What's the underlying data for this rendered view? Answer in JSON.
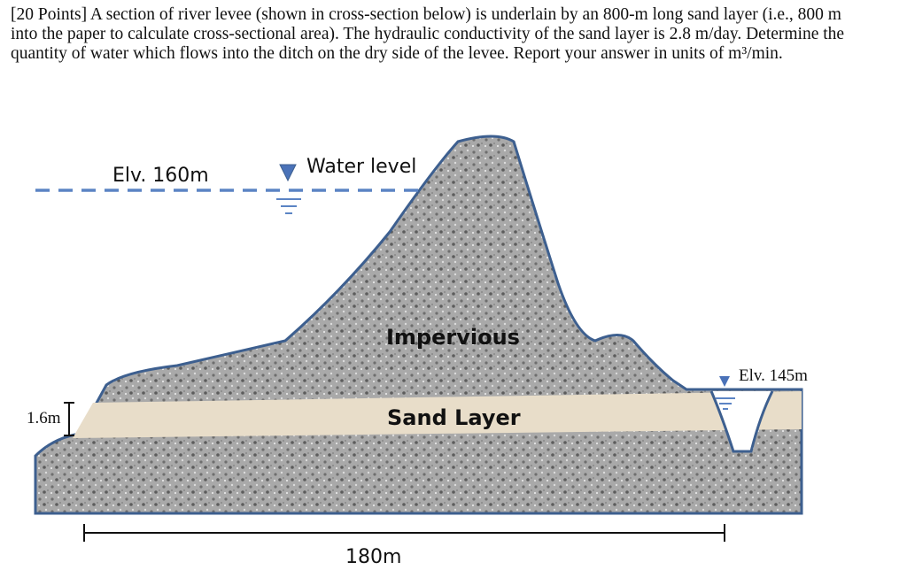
{
  "question": {
    "text": "[20 Points] A section of river levee (shown in cross-section below) is underlain by an 800-m long sand layer (i.e., 800 m into the paper to calculate cross-sectional area). The hydraulic conductivity of the sand layer is 2.8 m/day. Determine the quantity of water which flows into the ditch on the dry side of the levee. Report your answer in units of m³/min."
  },
  "diagram": {
    "river_elevation": "Elv. 160m",
    "water_level": "Water level",
    "impervious": "Impervious",
    "sand_layer": "Sand Layer",
    "ditch_elevation": "Elv. 145m",
    "layer_thickness": "1.6m",
    "length": "180m"
  }
}
